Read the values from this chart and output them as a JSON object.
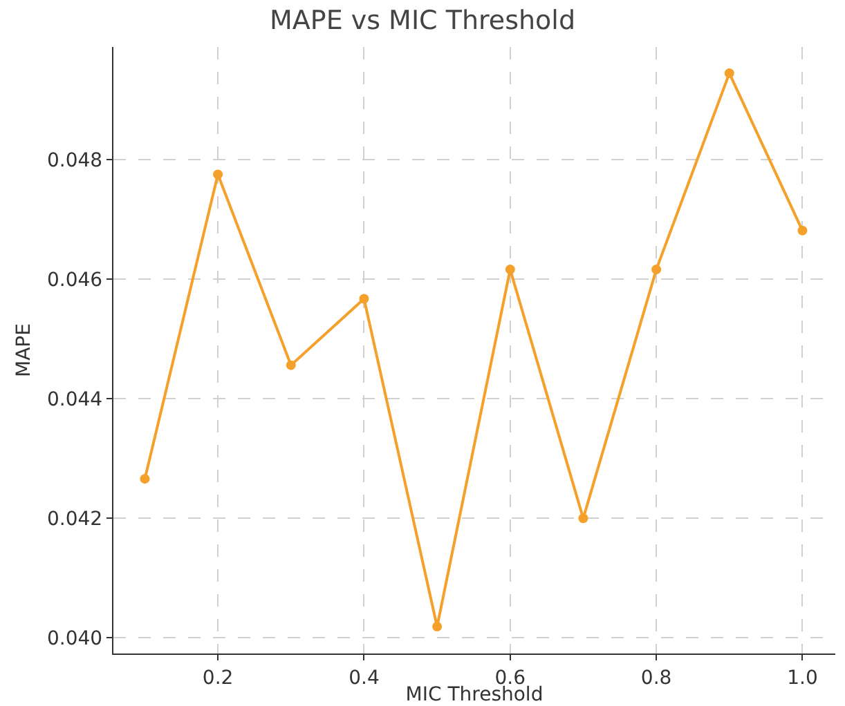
{
  "chart_data": {
    "type": "line",
    "title": "MAPE vs MIC Threshold",
    "xlabel": "MIC Threshold",
    "ylabel": "MAPE",
    "x": [
      0.1,
      0.2,
      0.3,
      0.4,
      0.5,
      0.6,
      0.7,
      0.8,
      0.9,
      1.0
    ],
    "series": [
      {
        "color": "#f5a02a",
        "values": [
          0.04266,
          0.04775,
          0.04456,
          0.04567,
          0.04019,
          0.04616,
          0.042,
          0.04616,
          0.04944,
          0.04681
        ]
      }
    ],
    "xlim": [
      0.057,
      1.045
    ],
    "xticks": [
      {
        "value": 0.2,
        "label": "0.2"
      },
      {
        "value": 0.4,
        "label": "0.4"
      },
      {
        "value": 0.6,
        "label": "0.6"
      },
      {
        "value": 0.8,
        "label": "0.8"
      },
      {
        "value": 1.0,
        "label": "1.0"
      }
    ],
    "ylim": [
      0.03974,
      0.04988
    ],
    "yticks": [
      {
        "value": 0.04,
        "label": "0.040"
      },
      {
        "value": 0.042,
        "label": "0.042"
      },
      {
        "value": 0.044,
        "label": "0.044"
      },
      {
        "value": 0.046,
        "label": "0.046"
      },
      {
        "value": 0.048,
        "label": "0.048"
      }
    ],
    "grid": true,
    "marker": "circle",
    "line_style": "solid",
    "legend": false
  }
}
